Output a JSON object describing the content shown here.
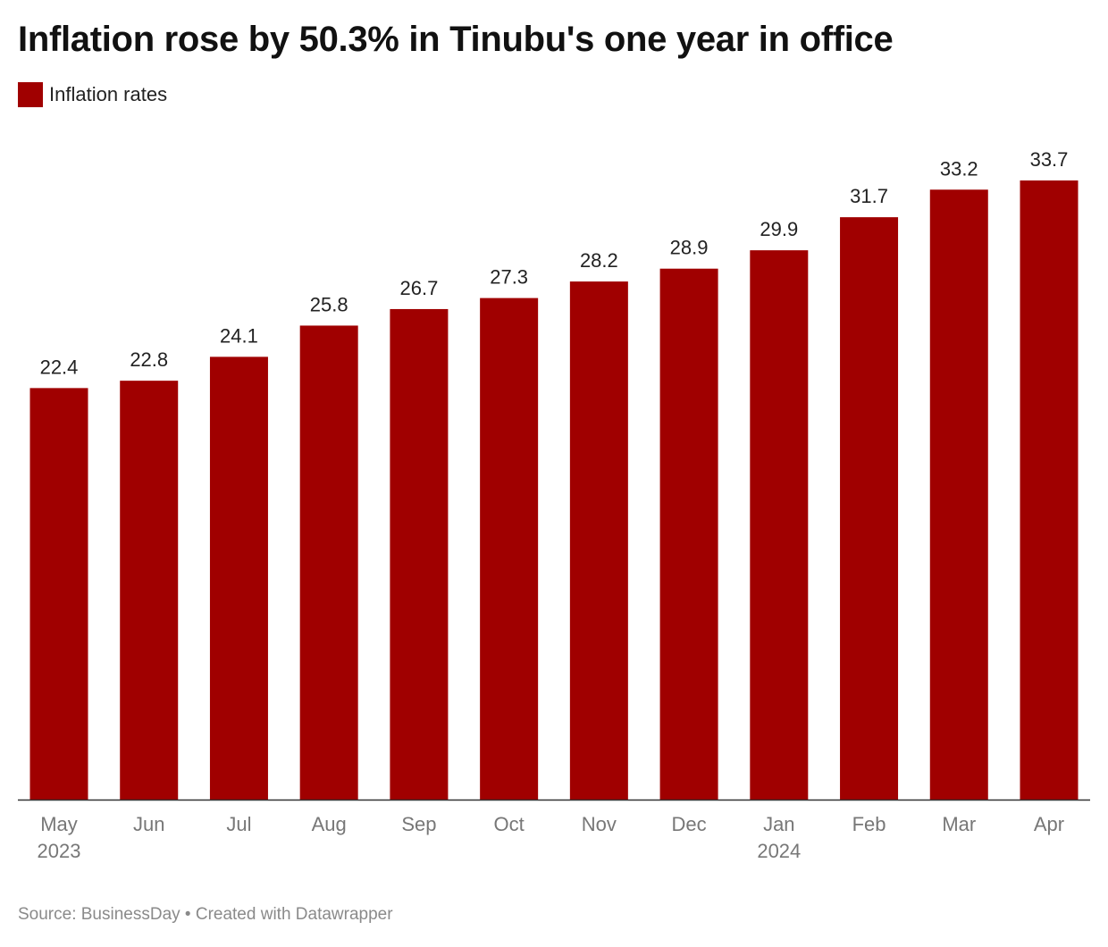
{
  "header": {
    "title": "Inflation rose by 50.3% in Tinubu's one year in office"
  },
  "legend": {
    "label": "Inflation rates",
    "color": "#a00000"
  },
  "colors": {
    "bar": "#a00000",
    "axis": "#333333",
    "text": "#222222",
    "tick": "#777777"
  },
  "chart_data": {
    "type": "bar",
    "title": "Inflation rose by 50.3% in Tinubu's one year in office",
    "xlabel": "",
    "ylabel": "",
    "ylim": [
      0,
      33.7
    ],
    "grid": false,
    "legend_position": "top-left",
    "categories": [
      "May",
      "Jun",
      "Jul",
      "Aug",
      "Sep",
      "Oct",
      "Nov",
      "Dec",
      "Jan",
      "Feb",
      "Mar",
      "Apr"
    ],
    "year_labels": [
      "2023",
      "",
      "",
      "",
      "",
      "",
      "",
      "",
      "2024",
      "",
      "",
      ""
    ],
    "series": [
      {
        "name": "Inflation rates",
        "values": [
          22.4,
          22.8,
          24.1,
          25.8,
          26.7,
          27.3,
          28.2,
          28.9,
          29.9,
          31.7,
          33.2,
          33.7
        ]
      }
    ]
  },
  "footer": {
    "source": "Source: BusinessDay • Created with Datawrapper"
  }
}
